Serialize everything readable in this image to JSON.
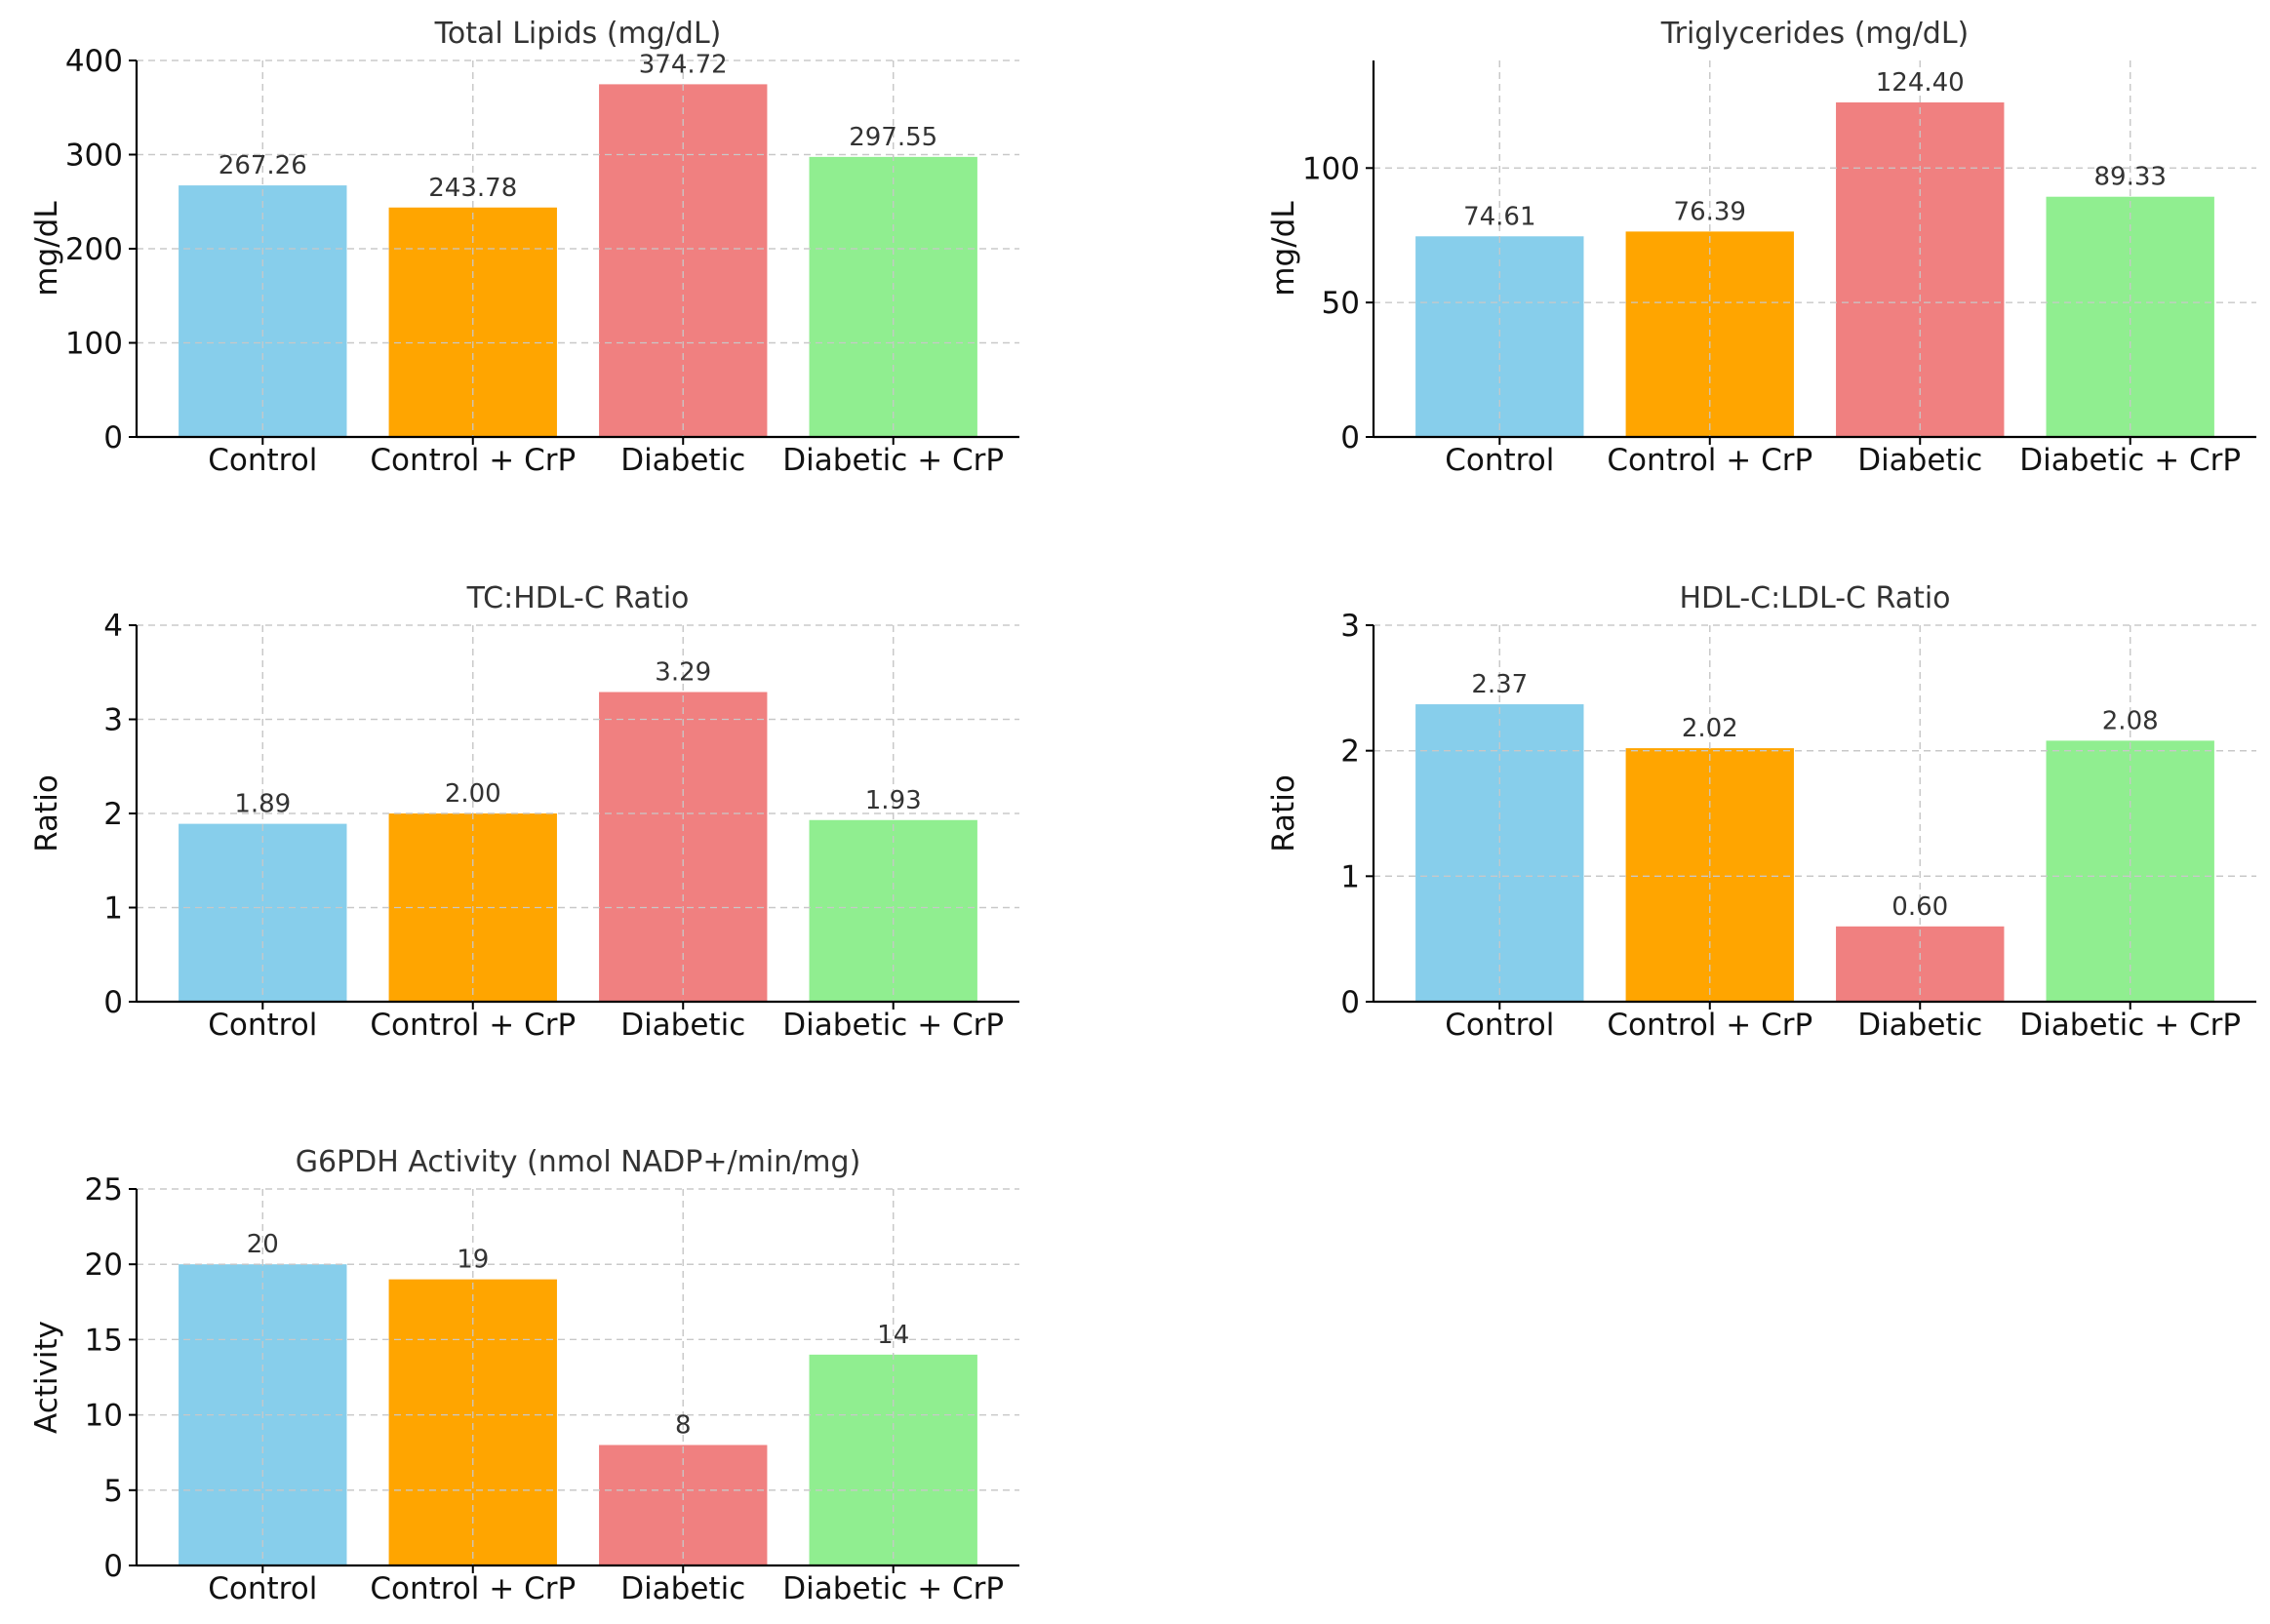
{
  "colors": {
    "Control": "#87CEEB",
    "Control + CrP": "#FFA500",
    "Diabetic": "#F08080",
    "Diabetic + CrP": "#90EE90"
  },
  "chart_data": [
    {
      "type": "bar",
      "title": "Total Lipids (mg/dL)",
      "xlabel": "",
      "ylabel": "mg/dL",
      "categories": [
        "Control",
        "Control + CrP",
        "Diabetic",
        "Diabetic + CrP"
      ],
      "values": [
        267.26,
        243.78,
        374.72,
        297.55
      ],
      "value_labels": [
        "267.26",
        "243.78",
        "374.72",
        "297.55"
      ],
      "ylim": [
        0,
        400
      ],
      "yticks": [
        0,
        100,
        200,
        300,
        400
      ],
      "grid": true
    },
    {
      "type": "bar",
      "title": "Triglycerides (mg/dL)",
      "xlabel": "",
      "ylabel": "mg/dL",
      "categories": [
        "Control",
        "Control + CrP",
        "Diabetic",
        "Diabetic + CrP"
      ],
      "values": [
        74.61,
        76.39,
        124.4,
        89.33
      ],
      "value_labels": [
        "74.61",
        "76.39",
        "124.40",
        "89.33"
      ],
      "ylim": [
        0,
        140
      ],
      "yticks": [
        0,
        50,
        100
      ],
      "grid": true
    },
    {
      "type": "bar",
      "title": "TC:HDL-C Ratio",
      "xlabel": "",
      "ylabel": "Ratio",
      "categories": [
        "Control",
        "Control + CrP",
        "Diabetic",
        "Diabetic + CrP"
      ],
      "values": [
        1.89,
        2.0,
        3.29,
        1.93
      ],
      "value_labels": [
        "1.89",
        "2.00",
        "3.29",
        "1.93"
      ],
      "ylim": [
        0,
        4
      ],
      "yticks": [
        0,
        1,
        2,
        3,
        4
      ],
      "grid": true
    },
    {
      "type": "bar",
      "title": "HDL-C:LDL-C Ratio",
      "xlabel": "",
      "ylabel": "Ratio",
      "categories": [
        "Control",
        "Control + CrP",
        "Diabetic",
        "Diabetic + CrP"
      ],
      "values": [
        2.37,
        2.02,
        0.6,
        2.08
      ],
      "value_labels": [
        "2.37",
        "2.02",
        "0.60",
        "2.08"
      ],
      "ylim": [
        0,
        3
      ],
      "yticks": [
        0,
        1,
        2,
        3
      ],
      "grid": true
    },
    {
      "type": "bar",
      "title": "G6PDH Activity (nmol NADP+/min/mg)",
      "xlabel": "",
      "ylabel": "Activity",
      "categories": [
        "Control",
        "Control + CrP",
        "Diabetic",
        "Diabetic + CrP"
      ],
      "values": [
        20,
        19,
        8,
        14
      ],
      "value_labels": [
        "20",
        "19",
        "8",
        "14"
      ],
      "ylim": [
        0,
        25
      ],
      "yticks": [
        0,
        5,
        10,
        15,
        20,
        25
      ],
      "grid": true
    }
  ]
}
